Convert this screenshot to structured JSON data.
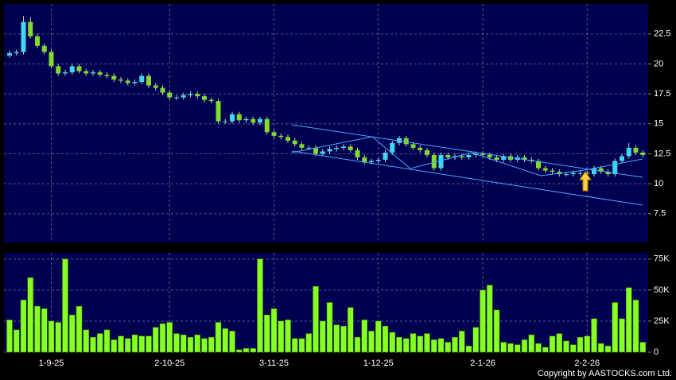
{
  "chart_data": [
    {
      "type": "candlestick",
      "open": [
        20.7,
        20.9,
        21.0,
        23.5,
        22.3,
        21.5,
        21.0,
        19.8,
        19.2,
        19.3,
        19.8,
        19.4,
        19.2,
        19.3,
        19.1,
        19.0,
        18.7,
        18.6,
        18.4,
        18.5,
        19.0,
        18.2,
        18.0,
        17.6,
        17.2,
        17.2,
        17.4,
        17.5,
        17.3,
        17.0,
        16.9,
        15.2,
        15.2,
        15.8,
        15.3,
        15.4,
        15.1,
        15.4,
        14.3,
        14.0,
        13.9,
        13.6,
        13.3,
        13.0,
        13.0,
        12.5,
        12.7,
        12.9,
        13.0,
        13.1,
        12.8,
        12.2,
        11.8,
        11.9,
        12.0,
        12.6,
        13.4,
        13.8,
        13.3,
        13.0,
        12.8,
        12.4,
        11.3,
        12.4,
        12.2,
        12.3,
        12.2,
        12.4,
        12.5,
        12.4,
        12.2,
        12.0,
        12.3,
        12.0,
        12.2,
        12.0,
        11.9,
        11.3,
        11.1,
        11.0,
        10.8,
        10.8,
        10.9,
        10.9,
        10.8,
        11.3,
        11.0,
        10.8,
        11.9,
        12.3,
        13.0,
        12.6
      ],
      "high": [
        21.1,
        21.2,
        24.0,
        23.9,
        22.5,
        21.7,
        21.2,
        20.0,
        19.5,
        20.0,
        20.0,
        19.6,
        19.5,
        19.5,
        19.3,
        19.2,
        18.9,
        18.8,
        18.7,
        19.2,
        19.2,
        18.4,
        18.2,
        17.8,
        17.4,
        17.6,
        17.7,
        17.7,
        17.5,
        17.2,
        17.1,
        15.4,
        16.0,
        16.0,
        15.6,
        15.6,
        15.6,
        15.6,
        14.5,
        14.2,
        14.1,
        13.8,
        13.5,
        13.2,
        13.2,
        12.9,
        13.1,
        13.2,
        13.3,
        13.3,
        13.0,
        12.4,
        12.1,
        12.2,
        12.8,
        13.6,
        14.0,
        14.0,
        13.5,
        13.2,
        13.0,
        12.6,
        12.6,
        12.6,
        12.5,
        12.5,
        12.6,
        12.7,
        12.7,
        12.6,
        12.4,
        12.5,
        12.5,
        12.4,
        12.4,
        12.2,
        12.1,
        11.5,
        11.3,
        11.2,
        11.0,
        11.1,
        11.1,
        11.1,
        11.5,
        11.5,
        11.2,
        12.1,
        12.5,
        13.4,
        13.2,
        12.8
      ],
      "low": [
        20.5,
        20.7,
        20.8,
        22.1,
        21.3,
        20.8,
        19.6,
        19.0,
        19.0,
        19.1,
        19.2,
        19.0,
        19.0,
        18.9,
        18.8,
        18.5,
        18.4,
        18.2,
        18.2,
        18.3,
        18.0,
        17.8,
        17.4,
        17.0,
        17.0,
        17.0,
        17.2,
        17.1,
        16.8,
        16.7,
        15.0,
        15.0,
        15.0,
        15.1,
        15.1,
        14.9,
        14.9,
        14.1,
        13.8,
        13.7,
        13.4,
        13.1,
        12.8,
        12.8,
        12.3,
        12.3,
        12.5,
        12.7,
        12.8,
        12.6,
        12.0,
        11.6,
        11.6,
        11.7,
        11.8,
        12.4,
        13.2,
        13.1,
        12.8,
        12.6,
        12.2,
        11.1,
        11.1,
        12.0,
        12.0,
        12.0,
        12.0,
        12.2,
        12.2,
        12.0,
        11.8,
        11.8,
        11.8,
        11.8,
        11.8,
        11.7,
        11.1,
        10.9,
        10.8,
        10.6,
        10.6,
        10.6,
        10.7,
        10.6,
        10.6,
        10.8,
        10.6,
        10.6,
        11.7,
        12.1,
        12.4,
        12.2
      ],
      "close": [
        20.9,
        21.0,
        23.5,
        22.3,
        21.5,
        21.0,
        19.8,
        19.2,
        19.3,
        19.8,
        19.4,
        19.2,
        19.3,
        19.1,
        19.0,
        18.7,
        18.6,
        18.4,
        18.5,
        19.0,
        18.2,
        18.0,
        17.6,
        17.2,
        17.2,
        17.4,
        17.5,
        17.3,
        17.0,
        16.9,
        15.2,
        15.2,
        15.8,
        15.3,
        15.4,
        15.1,
        15.4,
        14.3,
        14.0,
        13.9,
        13.6,
        13.3,
        13.0,
        13.0,
        12.5,
        12.7,
        12.9,
        13.0,
        13.1,
        12.8,
        12.2,
        11.8,
        11.9,
        12.0,
        12.6,
        13.4,
        13.8,
        13.3,
        13.0,
        12.8,
        12.4,
        11.3,
        12.4,
        12.2,
        12.3,
        12.2,
        12.4,
        12.5,
        12.4,
        12.2,
        12.0,
        12.3,
        12.0,
        12.2,
        12.0,
        11.9,
        11.3,
        11.1,
        11.0,
        10.8,
        10.8,
        10.9,
        10.9,
        10.8,
        11.3,
        11.0,
        10.8,
        11.9,
        12.3,
        13.0,
        12.6,
        12.4
      ],
      "ylim": [
        5.1,
        25
      ],
      "yticks": [
        7.5,
        10,
        12.5,
        15,
        17.5,
        20,
        22.5
      ],
      "up_color": "#3fd8f0",
      "down_color": "#7fdc2a",
      "wick_color": "#c8c8c8",
      "grid": true
    },
    {
      "type": "bar",
      "categories": [
        null,
        null,
        null,
        null,
        null,
        null,
        "1-9-25",
        null,
        null,
        null,
        null,
        null,
        null,
        null,
        null,
        null,
        null,
        null,
        null,
        null,
        null,
        null,
        null,
        "2-10-25",
        null,
        null,
        null,
        null,
        null,
        null,
        null,
        null,
        null,
        null,
        null,
        null,
        null,
        null,
        "3-11-25",
        null,
        null,
        null,
        null,
        null,
        null,
        null,
        null,
        null,
        null,
        null,
        null,
        null,
        null,
        "1-12-25",
        null,
        null,
        null,
        null,
        null,
        null,
        null,
        null,
        null,
        null,
        null,
        null,
        null,
        null,
        "2-1-26",
        null,
        null,
        null,
        null,
        null,
        null,
        null,
        null,
        null,
        null,
        null,
        null,
        null,
        null,
        "2-2-26",
        null,
        null,
        null,
        null,
        null,
        null,
        null,
        null
      ],
      "values": [
        26000,
        18000,
        42000,
        60000,
        37000,
        35000,
        25000,
        24000,
        75000,
        30000,
        37000,
        18000,
        12000,
        15000,
        18000,
        10000,
        13000,
        11000,
        14000,
        13000,
        13000,
        20000,
        23000,
        24000,
        15000,
        14000,
        12000,
        14000,
        11000,
        12000,
        24000,
        19000,
        17000,
        2000,
        3000,
        3000,
        75000,
        30000,
        35000,
        25000,
        26000,
        11000,
        11000,
        15000,
        53000,
        25000,
        40000,
        22000,
        21000,
        36000,
        12000,
        26000,
        17000,
        25000,
        21000,
        16000,
        12000,
        11000,
        15000,
        13000,
        15000,
        10000,
        11000,
        8000,
        12000,
        17000,
        5000,
        20000,
        50000,
        54000,
        34000,
        8000,
        7000,
        6000,
        10000,
        14000,
        7000,
        4000,
        13000,
        15000,
        9000,
        6000,
        12000,
        13000,
        27000,
        7000,
        5000,
        40000,
        27000,
        52000,
        42000,
        8000
      ],
      "ylim": [
        0,
        80000
      ],
      "yticks": [
        0,
        {
          "value": 25000,
          "label": "25K"
        },
        {
          "value": 50000,
          "label": "50K"
        },
        {
          "value": 75000,
          "label": "75K"
        }
      ],
      "color": "#88ff22",
      "grid": true
    }
  ],
  "copyright": "Copyright by AASTOCKS.com Ltd."
}
